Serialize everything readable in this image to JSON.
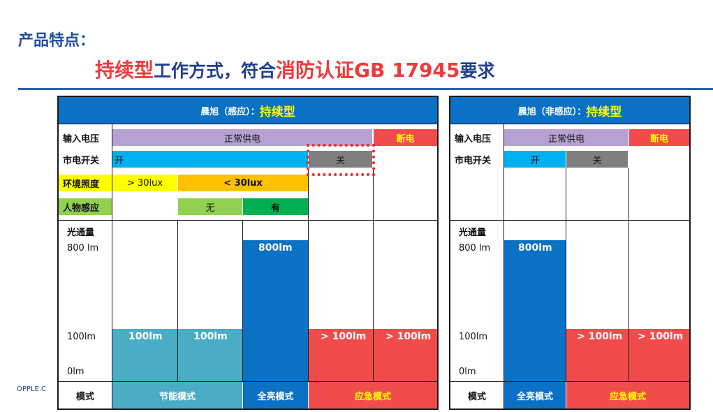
{
  "page": {
    "section_title": "产品特点：",
    "headline": {
      "part1": "持续型",
      "part2": "工作方式，符合",
      "part3": "消防认证GB 17945",
      "part4": "要求"
    },
    "footer_text": "OPPLE.C"
  },
  "colors": {
    "header_blue": "#0a71c5",
    "purple": "#b6a1d2",
    "red": "#f14c4c",
    "cyan": "#00b0ef",
    "gray": "#7f7f7f",
    "yellow": "#ffff00",
    "orange": "#ffc000",
    "light_green": "#92d050",
    "green": "#00b050",
    "teal": "#4bacc6",
    "blue": "#0a71c5"
  },
  "left_panel": {
    "title_prefix": "晨旭（感应）：",
    "title_highlight": "持续型",
    "row_labels": {
      "input_voltage": "输入电压",
      "mains_switch": "市电开关",
      "ambient_lux": "环境照度",
      "presence": "人物感应",
      "luminous_flux": "光通量",
      "mode": "模式"
    },
    "input_voltage": {
      "normal": "正常供电",
      "power_off": "断电"
    },
    "mains_switch": {
      "on": "开",
      "off": "关"
    },
    "ambient_lux": {
      "high": "> 30lux",
      "low": "< 30lux"
    },
    "presence": {
      "none": "无",
      "yes": "有"
    },
    "axis": {
      "max": "800 lm",
      "mid": "100lm",
      "zero": "0lm"
    },
    "bar_labels": [
      "100lm",
      "100lm",
      "800lm",
      "> 100lm",
      "> 100lm"
    ],
    "modes": {
      "energy_saving": "节能模式",
      "full_bright": "全亮模式",
      "emergency": "应急模式"
    }
  },
  "right_panel": {
    "title_prefix": "晨旭（非感应）：",
    "title_highlight": "持续型",
    "row_labels": {
      "input_voltage": "输入电压",
      "mains_switch": "市电开关",
      "luminous_flux": "光通量",
      "mode": "模式"
    },
    "input_voltage": {
      "normal": "正常供电",
      "power_off": "断电"
    },
    "mains_switch": {
      "on": "开",
      "off": "关"
    },
    "axis": {
      "max": "800 lm",
      "mid": "100lm",
      "zero": "0lm"
    },
    "bar_labels": [
      "800lm",
      "> 100lm",
      "> 100lm"
    ],
    "modes": {
      "full_bright": "全亮模式",
      "emergency": "应急模式"
    }
  }
}
